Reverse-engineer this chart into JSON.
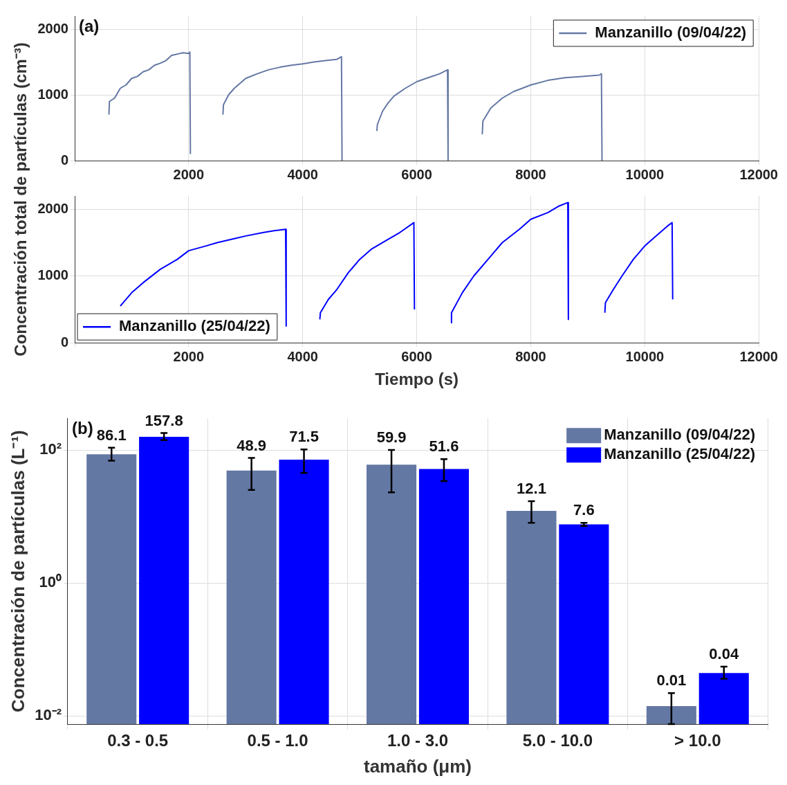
{
  "chart_data": [
    {
      "type": "line",
      "ylabel": "Concentración total de partículas (cm⁻³)",
      "annotations": [
        "(a)"
      ],
      "xlim": [
        0,
        12000
      ],
      "xticks": [
        {
          "value": 0,
          "label": null
        },
        2000,
        4000,
        6000,
        8000,
        10000,
        12000
      ],
      "ylim": [
        0,
        2200
      ],
      "yticks": [
        0,
        1000,
        2000
      ],
      "grid": true,
      "legend": "top right",
      "marker": "none",
      "line_style": "solid",
      "series": [
        {
          "name": "Manzanillo (09/04/22)",
          "color": "#6478a4",
          "x": [
            600,
            610,
            700,
            800,
            900,
            1000,
            1100,
            1200,
            1300,
            1400,
            1500,
            1600,
            1700,
            1800,
            1900,
            2000,
            2020,
            2030,
            2300,
            2600,
            2610,
            2700,
            2800,
            3000,
            3200,
            3400,
            3600,
            3800,
            4000,
            4200,
            4400,
            4600,
            4680,
            4690,
            5000,
            5300,
            5310,
            5400,
            5500,
            5600,
            5800,
            6000,
            6200,
            6400,
            6540,
            6550,
            6800,
            7150,
            7160,
            7300,
            7500,
            7700,
            8000,
            8300,
            8600,
            8900,
            9200,
            9240,
            9250
          ],
          "values": [
            700,
            900,
            950,
            1100,
            1150,
            1250,
            1280,
            1350,
            1380,
            1450,
            1480,
            1520,
            1600,
            1620,
            1640,
            1630,
            1650,
            100,
            null,
            700,
            850,
            1000,
            1100,
            1250,
            1320,
            1380,
            1420,
            1450,
            1470,
            1500,
            1520,
            1540,
            1580,
            0,
            null,
            450,
            550,
            750,
            880,
            980,
            1100,
            1200,
            1260,
            1320,
            1380,
            0,
            null,
            400,
            600,
            800,
            950,
            1050,
            1150,
            1220,
            1260,
            1280,
            1300,
            1320,
            0
          ]
        }
      ]
    },
    {
      "type": "line",
      "xlabel": "Tiempo (s)",
      "xlim": [
        0,
        12000
      ],
      "xticks": [
        {
          "value": 0,
          "label": null
        },
        2000,
        4000,
        6000,
        8000,
        10000,
        12000
      ],
      "ylim": [
        0,
        2200
      ],
      "yticks": [
        0,
        1000,
        2000
      ],
      "grid": true,
      "legend": "bottom left",
      "marker": "none",
      "line_style": "solid",
      "series": [
        {
          "name": "Manzanillo (25/04/22)",
          "color": "#0000ff",
          "x": [
            800,
            1000,
            1200,
            1500,
            1800,
            2000,
            2300,
            2500,
            2800,
            3000,
            3300,
            3500,
            3700,
            3710,
            4000,
            4300,
            4310,
            4450,
            4600,
            4800,
            5000,
            5200,
            5500,
            5700,
            5950,
            5960,
            6300,
            6600,
            6610,
            6800,
            7000,
            7300,
            7500,
            7800,
            8000,
            8300,
            8500,
            8650,
            8660,
            9000,
            9300,
            9310,
            9450,
            9600,
            9800,
            10000,
            10200,
            10400,
            10480,
            10490
          ],
          "values": [
            550,
            750,
            900,
            1100,
            1250,
            1380,
            1450,
            1500,
            1560,
            1600,
            1650,
            1680,
            1700,
            250,
            null,
            350,
            450,
            650,
            800,
            1050,
            1250,
            1400,
            1550,
            1650,
            1800,
            500,
            null,
            300,
            450,
            750,
            1000,
            1300,
            1500,
            1700,
            1850,
            1950,
            2050,
            2100,
            350,
            null,
            450,
            600,
            800,
            1000,
            1250,
            1450,
            1600,
            1750,
            1800,
            650
          ]
        }
      ]
    },
    {
      "type": "bar",
      "ylabel": "Concentración de partículas (L⁻¹)",
      "xlabel": "tamaño (μm)",
      "annotations": [
        "(b)"
      ],
      "log": true,
      "ylim": [
        0.0075,
        300
      ],
      "yticks": [
        {
          "value": 0.01,
          "label": "10⁻²"
        },
        {
          "value": 1,
          "label": "10⁰"
        },
        {
          "value": 100,
          "label": "10²"
        }
      ],
      "grid": true,
      "legend": "top right",
      "categories": [
        "0.3 - 0.5",
        "0.5 - 1.0",
        "1.0 - 3.0",
        "5.0 - 10.0",
        "> 10.0"
      ],
      "series": [
        {
          "name": "Manzanillo (09/04/22)",
          "color": "#6478a4",
          "values": [
            86.1,
            48.9,
            59.9,
            12.1,
            0.014
          ],
          "errors": [
            [
              69,
              108
            ],
            [
              25,
              76
            ],
            [
              23,
              100
            ],
            [
              8,
              17
            ],
            [
              0.0075,
              0.022
            ]
          ],
          "value_labels": [
            "86.1",
            "48.9",
            "59.9",
            "12.1",
            "0.01"
          ]
        },
        {
          "name": "Manzanillo (25/04/22)",
          "color": "#0000ff",
          "values": [
            157.8,
            71.5,
            51.6,
            7.6,
            0.044
          ],
          "errors": [
            [
              141,
              180
            ],
            [
              45,
              102
            ],
            [
              34,
              73
            ],
            [
              7.2,
              8
            ],
            [
              0.036,
              0.055
            ]
          ],
          "value_labels": [
            "157.8",
            "71.5",
            "51.6",
            "7.6",
            "0.04"
          ]
        }
      ]
    }
  ]
}
